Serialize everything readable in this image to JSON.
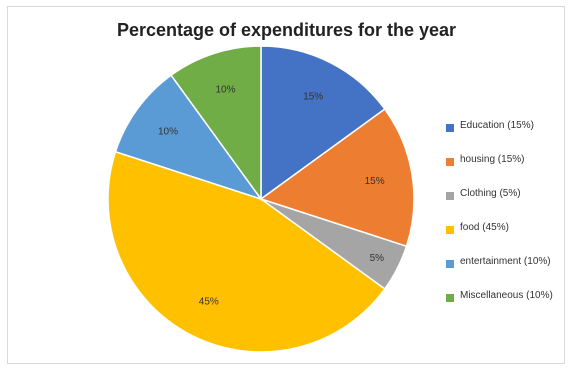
{
  "chart_data": {
    "type": "pie",
    "title": "Percentage of expenditures for the year",
    "slices": [
      {
        "category": "Education",
        "value": 15,
        "label": "15%",
        "legend": "Education (15%)",
        "color": "#4472c4"
      },
      {
        "category": "housing",
        "value": 15,
        "label": "15%",
        "legend": "housing (15%)",
        "color": "#ed7d31"
      },
      {
        "category": "Clothing",
        "value": 5,
        "label": "5%",
        "legend": "Clothing (5%)",
        "color": "#a5a5a5"
      },
      {
        "category": "food",
        "value": 45,
        "label": "45%",
        "legend": "food (45%)",
        "color": "#ffc000"
      },
      {
        "category": "entertainment",
        "value": 10,
        "label": "10%",
        "legend": "entertainment (10%)",
        "color": "#5b9bd5"
      },
      {
        "category": "Miscellaneous",
        "value": 10,
        "label": "10%",
        "legend": "Miscellaneous (10%)",
        "color": "#70ad47"
      }
    ],
    "start_angle": "12 o'clock",
    "direction": "clockwise",
    "legend_position": "right"
  }
}
